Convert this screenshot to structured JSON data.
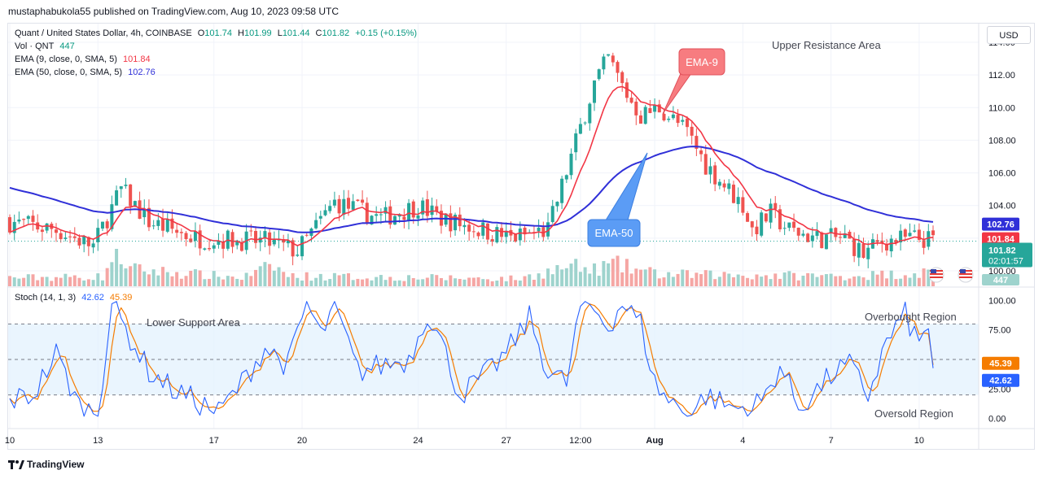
{
  "publisher": "mustaphabukola55 published on TradingView.com, Aug 10, 2023 09:58 UTC",
  "footer_brand": "TradingView",
  "currency_button": "USD",
  "legend": {
    "symbol": "Quant / United States Dollar, 4h, COINBASE",
    "open_label": "O",
    "open": "101.74",
    "high_label": "H",
    "high": "101.99",
    "low_label": "L",
    "low": "101.44",
    "close_label": "C",
    "close": "101.82",
    "change": "+0.15 (+0.15%)",
    "vol_label": "Vol · QNT",
    "vol": "447",
    "ema9_label": "EMA (9, close, 0, SMA, 5)",
    "ema9": "101.84",
    "ema50_label": "EMA (50, close, 0, SMA, 5)",
    "ema50": "102.76",
    "stoch_label": "Stoch (14, 1, 3)",
    "stoch_k": "42.62",
    "stoch_d": "45.39"
  },
  "annotations": {
    "upper_resistance": "Upper Resistance Area",
    "lower_support": "Lower Support Area",
    "overbought": "Overbought Region",
    "oversold": "Oversold Region",
    "ema9_callout": "EMA-9",
    "ema50_callout": "EMA-50"
  },
  "price_badges": {
    "ema50": "102.76",
    "ema9": "101.84",
    "last": "101.82",
    "countdown": "02:01:57",
    "volume": "447",
    "stoch_d": "45.39",
    "stoch_k": "42.62"
  },
  "colors": {
    "up": "#26a69a",
    "down": "#ef5350",
    "ema9": "#f23645",
    "ema50": "#3030d8",
    "stoch_k": "#2962ff",
    "stoch_d": "#f57c00",
    "band": "#e3f2fd",
    "callout_red": "#f77c80",
    "callout_blue": "#5b9cf5"
  },
  "chart_data": [
    {
      "type": "candlestick",
      "title": "Quant / United States Dollar, 4h, COINBASE",
      "y_ticks": [
        "100.00",
        "102.00",
        "104.00",
        "106.00",
        "108.00",
        "110.00",
        "112.00",
        "114.00"
      ],
      "ylim": [
        99.4,
        114.6
      ],
      "x_ticks": [
        "10",
        "13",
        "17",
        "20",
        "24",
        "27",
        "12:00",
        "Aug",
        "4",
        "7",
        "10"
      ],
      "x_tick_bar_index": [
        0,
        19,
        44,
        63,
        88,
        107,
        123,
        139,
        158,
        177,
        196
      ],
      "bar_count": 200,
      "close_path": [
        [
          0,
          103.0
        ],
        [
          10,
          102.5
        ],
        [
          18,
          101.5
        ],
        [
          24,
          105.0
        ],
        [
          30,
          103.0
        ],
        [
          40,
          102.0
        ],
        [
          55,
          101.8
        ],
        [
          62,
          101.2
        ],
        [
          70,
          104.2
        ],
        [
          80,
          103.2
        ],
        [
          88,
          104.0
        ],
        [
          93,
          103.2
        ],
        [
          108,
          102.0
        ],
        [
          116,
          102.5
        ],
        [
          121,
          107.0
        ],
        [
          126,
          111.5
        ],
        [
          129,
          113.0
        ],
        [
          133,
          110.8
        ],
        [
          136,
          109.5
        ],
        [
          140,
          110.0
        ],
        [
          146,
          108.5
        ],
        [
          150,
          106.5
        ],
        [
          158,
          104.0
        ],
        [
          160,
          102.5
        ],
        [
          164,
          103.5
        ],
        [
          168,
          102.5
        ],
        [
          174,
          102.0
        ],
        [
          180,
          102.0
        ],
        [
          184,
          101.0
        ],
        [
          188,
          101.8
        ],
        [
          195,
          102.0
        ],
        [
          200,
          101.82
        ]
      ],
      "volume_path": [
        [
          0,
          250
        ],
        [
          20,
          280
        ],
        [
          22,
          800
        ],
        [
          23,
          1100
        ],
        [
          26,
          500
        ],
        [
          50,
          250
        ],
        [
          57,
          600
        ],
        [
          60,
          300
        ],
        [
          110,
          220
        ],
        [
          121,
          600
        ],
        [
          125,
          450
        ],
        [
          130,
          650
        ],
        [
          140,
          350
        ],
        [
          180,
          300
        ],
        [
          195,
          380
        ],
        [
          200,
          447
        ]
      ],
      "series": [
        {
          "name": "EMA (9, close, 0, SMA, 5)",
          "last": 101.84
        },
        {
          "name": "EMA (50, close, 0, SMA, 5)",
          "last": 102.76
        }
      ]
    },
    {
      "type": "line",
      "title": "Stoch (14, 1, 3)",
      "y_ticks": [
        "0.00",
        "25.00",
        "75.00",
        "100.00"
      ],
      "ylim": [
        -5,
        105
      ],
      "levels": [
        20,
        50,
        80
      ],
      "series": [
        {
          "name": "%K",
          "last": 42.62
        },
        {
          "name": "%D",
          "last": 45.39
        }
      ],
      "k_path": [
        [
          0,
          15
        ],
        [
          5,
          20
        ],
        [
          10,
          55
        ],
        [
          15,
          10
        ],
        [
          19,
          5
        ],
        [
          22,
          98
        ],
        [
          25,
          75
        ],
        [
          30,
          40
        ],
        [
          35,
          25
        ],
        [
          40,
          15
        ],
        [
          45,
          5
        ],
        [
          50,
          30
        ],
        [
          55,
          60
        ],
        [
          60,
          45
        ],
        [
          64,
          98
        ],
        [
          67,
          70
        ],
        [
          70,
          95
        ],
        [
          75,
          40
        ],
        [
          80,
          45
        ],
        [
          86,
          50
        ],
        [
          90,
          90
        ],
        [
          93,
          65
        ],
        [
          97,
          20
        ],
        [
          102,
          35
        ],
        [
          107,
          55
        ],
        [
          112,
          85
        ],
        [
          116,
          40
        ],
        [
          120,
          30
        ],
        [
          123,
          95
        ],
        [
          126,
          92
        ],
        [
          129,
          78
        ],
        [
          132,
          98
        ],
        [
          136,
          80
        ],
        [
          139,
          30
        ],
        [
          142,
          15
        ],
        [
          147,
          5
        ],
        [
          150,
          20
        ],
        [
          155,
          10
        ],
        [
          160,
          8
        ],
        [
          163,
          20
        ],
        [
          166,
          45
        ],
        [
          170,
          10
        ],
        [
          173,
          20
        ],
        [
          178,
          40
        ],
        [
          181,
          45
        ],
        [
          185,
          20
        ],
        [
          189,
          65
        ],
        [
          193,
          88
        ],
        [
          196,
          62
        ],
        [
          198,
          80
        ],
        [
          200,
          42.62
        ]
      ]
    }
  ]
}
